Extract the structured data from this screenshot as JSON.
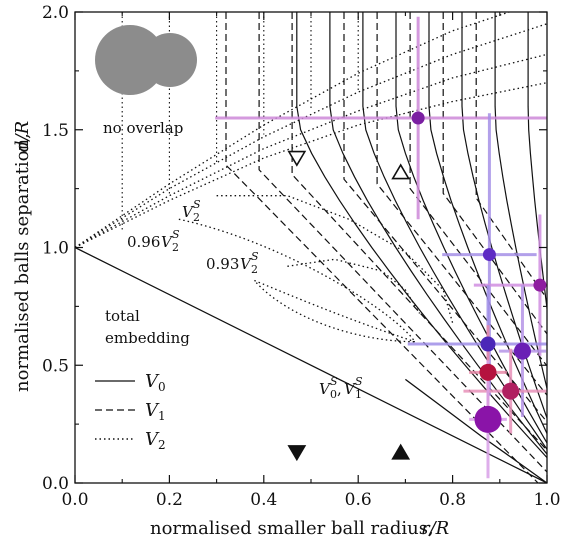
{
  "chart_data": {
    "type": "scatter",
    "xlabel": "normalised smaller ball radius,",
    "xlabel_var": "r/R",
    "ylabel": "normalised balls separation,",
    "ylabel_var": "d/R",
    "xlim": [
      0.0,
      1.0
    ],
    "ylim": [
      0.0,
      2.0
    ],
    "x_ticks": [
      "0.0",
      "0.2",
      "0.4",
      "0.6",
      "0.8",
      "1.0"
    ],
    "y_ticks": [
      "0.0",
      "0.5",
      "1.0",
      "1.5",
      "2.0"
    ],
    "annotations": {
      "no_overlap": "no overlap",
      "total_embedding_1": "total",
      "total_embedding_2": "embedding",
      "v2s": "V",
      "v096": "0.96",
      "v093": "0.93",
      "v0v1": "V",
      "v0v1_mid": ",",
      "sup": "S",
      "sub0": "0",
      "sub1": "1",
      "sub2": "2"
    },
    "legend": {
      "placement": "bottom-left",
      "entries": [
        {
          "label": "V",
          "sub": "0",
          "style": "solid"
        },
        {
          "label": "V",
          "sub": "1",
          "style": "dashed"
        },
        {
          "label": "V",
          "sub": "2",
          "style": "dotted"
        }
      ]
    },
    "markers": [
      {
        "shape": "triangle-down-open",
        "x": 0.47,
        "y": 1.38
      },
      {
        "shape": "triangle-up-open",
        "x": 0.69,
        "y": 1.32
      },
      {
        "shape": "triangle-down-filled",
        "x": 0.47,
        "y": 0.13
      },
      {
        "shape": "triangle-up-filled",
        "x": 0.69,
        "y": 0.13
      }
    ],
    "points": [
      {
        "x": 0.727,
        "y": 1.55,
        "xerr": 0.43,
        "yerr": 0.43,
        "size": 13,
        "color": "#7b1fa2",
        "err": "#cc88d8"
      },
      {
        "x": 0.878,
        "y": 0.97,
        "xerr": 0.1,
        "yerr": 0.6,
        "size": 13,
        "color": "#5e2bc4",
        "err": "#a58fe6"
      },
      {
        "x": 0.985,
        "y": 0.84,
        "xerr": 0.14,
        "yerr": 0.3,
        "size": 13,
        "color": "#8e1ea0",
        "err": "#d08ee0"
      },
      {
        "x": 0.875,
        "y": 0.59,
        "xerr": 0.17,
        "yerr": 0.25,
        "size": 15,
        "color": "#4b28b8",
        "err": "#9f8ee8"
      },
      {
        "x": 0.948,
        "y": 0.56,
        "xerr": 0.05,
        "yerr": 0.28,
        "size": 17,
        "color": "#6a1fb5",
        "err": "#b594e6"
      },
      {
        "x": 0.875,
        "y": 0.47,
        "xerr": 0.04,
        "yerr": 0.2,
        "size": 17,
        "color": "#b5123f",
        "err": "#e88aa8"
      },
      {
        "x": 0.923,
        "y": 0.39,
        "xerr": 0.1,
        "yerr": 0.18,
        "size": 17,
        "color": "#b02060",
        "err": "#e890b8"
      },
      {
        "x": 0.875,
        "y": 0.27,
        "xerr": 0.04,
        "yerr": 0.25,
        "size": 27,
        "color": "#8a14a8",
        "err": "#d8a0e8"
      }
    ]
  }
}
